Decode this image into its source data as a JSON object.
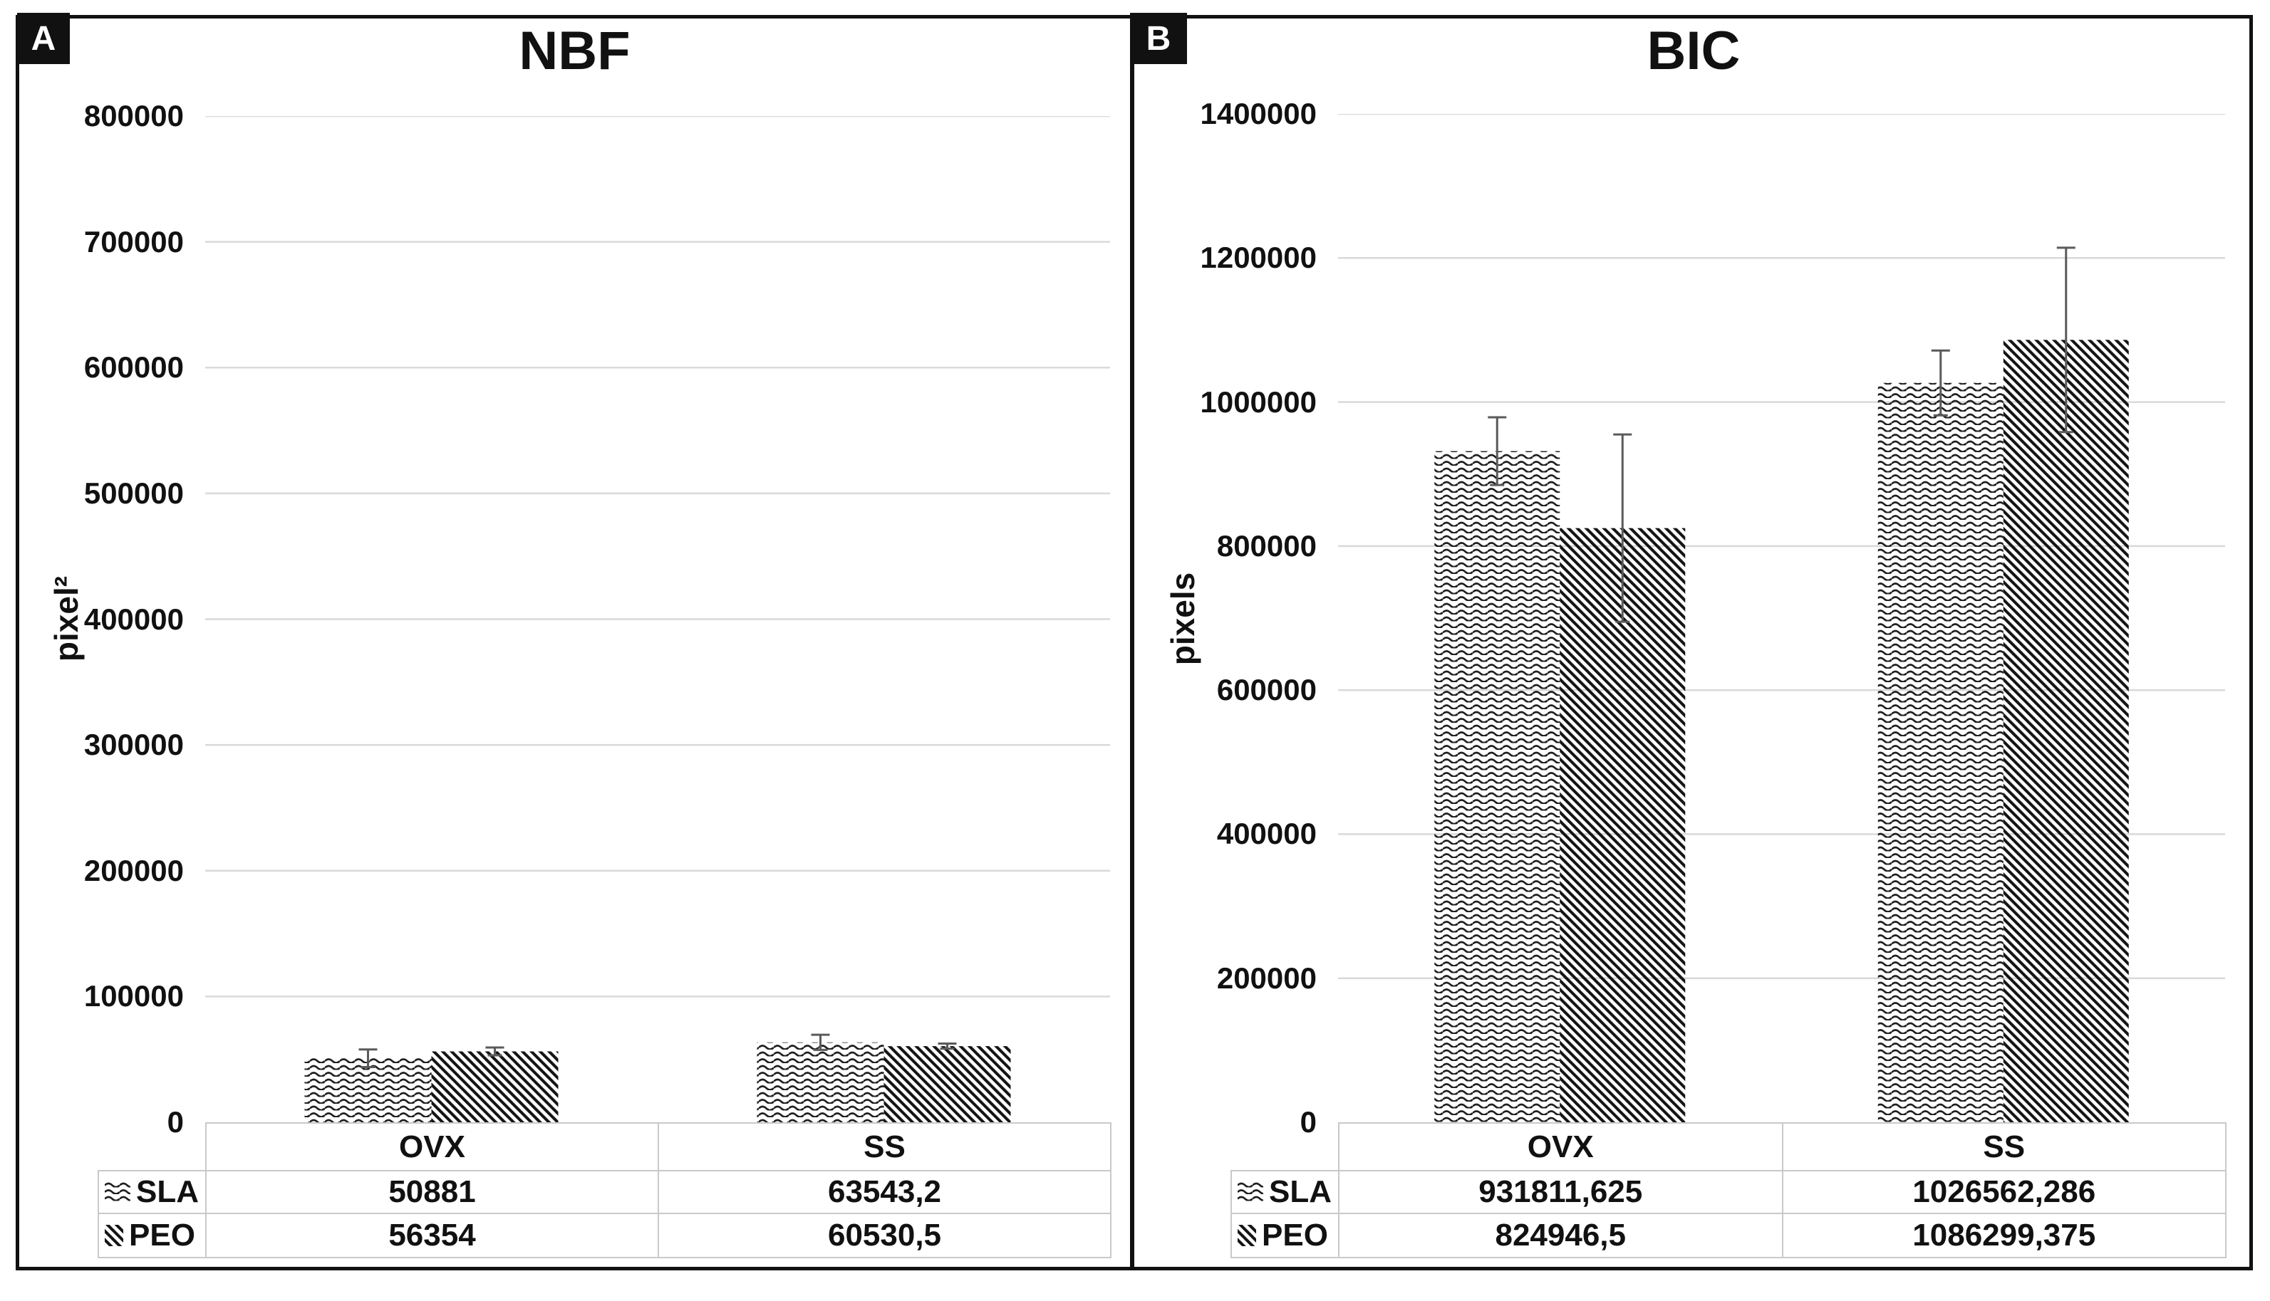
{
  "figure": {
    "panel_count": 2,
    "frame_color": "#111111",
    "gridline_color": "#d9d9d9",
    "error_bar_color": "#5a5a5a",
    "table_border_color": "#c9c9c9"
  },
  "chart_data": [
    {
      "type": "bar",
      "panel_label": "A",
      "title": "NBF",
      "ylabel": "pixel²",
      "categories": [
        "OVX",
        "SS"
      ],
      "series": [
        {
          "name": "SLA",
          "pattern": "wave",
          "values": [
            50881,
            63543.2
          ],
          "value_labels": [
            "50881",
            "63543,2"
          ],
          "errors_plus": [
            7000,
            6000
          ]
        },
        {
          "name": "PEO",
          "pattern": "diagonal",
          "values": [
            56354,
            60530.5
          ],
          "value_labels": [
            "56354",
            "60530,5"
          ],
          "errors_plus": [
            3100,
            2000
          ]
        }
      ],
      "ylim": [
        0,
        800000
      ],
      "ytick_labels": [
        "800000",
        "700000",
        "600000",
        "500000",
        "400000",
        "300000",
        "200000",
        "100000",
        "0"
      ],
      "grid": true,
      "legend_position": "table-left"
    },
    {
      "type": "bar",
      "panel_label": "B",
      "title": "BIC",
      "ylabel": "pixels",
      "categories": [
        "OVX",
        "SS"
      ],
      "series": [
        {
          "name": "SLA",
          "pattern": "wave",
          "values": [
            931811.625,
            1026562.286
          ],
          "value_labels": [
            "931811,625",
            "1026562,286"
          ],
          "errors_plus": [
            47000,
            45000
          ]
        },
        {
          "name": "PEO",
          "pattern": "diagonal",
          "values": [
            824946.5,
            1086299.375
          ],
          "value_labels": [
            "824946,5",
            "1086299,375"
          ],
          "errors_plus": [
            130000,
            128000
          ]
        }
      ],
      "ylim": [
        0,
        1400000
      ],
      "ytick_labels": [
        "1400000",
        "1200000",
        "1000000",
        "800000",
        "600000",
        "400000",
        "200000",
        "0"
      ],
      "grid": true,
      "legend_position": "table-left"
    }
  ]
}
